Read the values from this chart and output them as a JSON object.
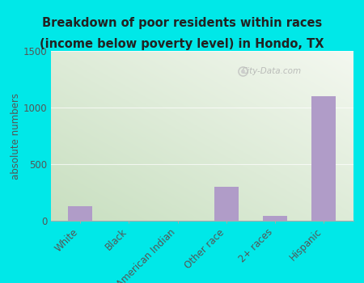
{
  "categories": [
    "White",
    "Black",
    "American Indian",
    "Other race",
    "2+ races",
    "Hispanic"
  ],
  "values": [
    130,
    0,
    0,
    300,
    40,
    1100
  ],
  "bar_color": "#b09cc8",
  "title_line1": "Breakdown of poor residents within races",
  "title_line2": "(income below poverty level) in Hondo, TX",
  "ylabel": "absolute numbers",
  "ylim": [
    0,
    1500
  ],
  "yticks": [
    0,
    500,
    1000,
    1500
  ],
  "bg_outer": "#00e8e8",
  "title_fontsize": 10.5,
  "watermark": "City-Data.com",
  "gradient_left": "#c8dfc0",
  "gradient_right": "#f4f8f0"
}
